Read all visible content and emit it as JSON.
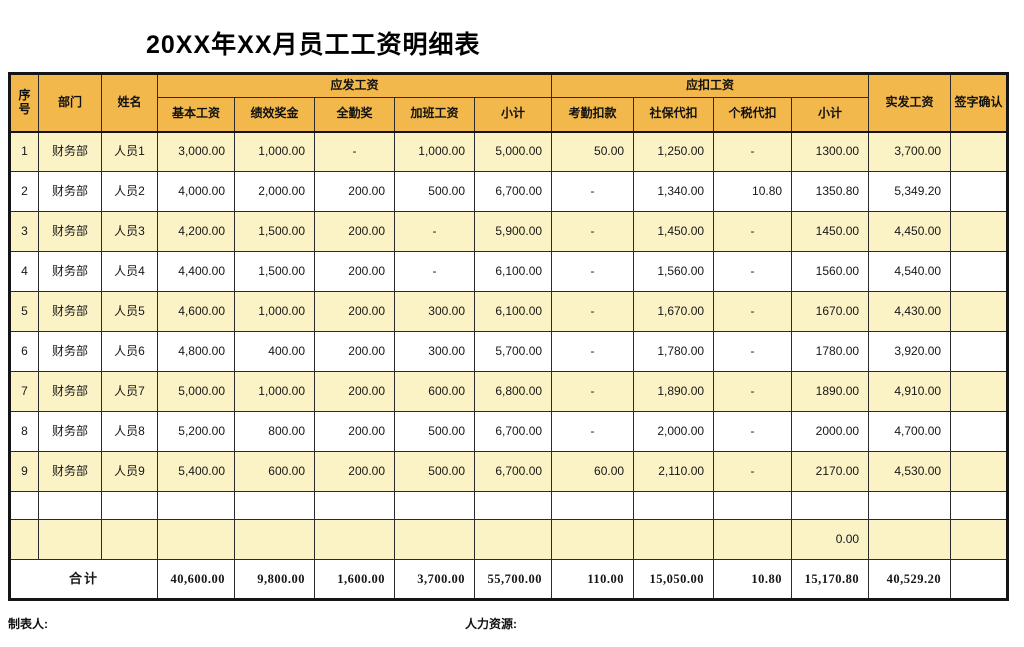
{
  "title": "20XX年XX月员工工资明细表",
  "colors": {
    "header_bg": "#F2B84B",
    "stripe_bg": "#FBF3C6",
    "border": "#141414"
  },
  "table": {
    "header": {
      "no": "序号",
      "dept": "部门",
      "name": "姓名",
      "gross_group": "应发工资",
      "deduct_group": "应扣工资",
      "gross_sub": [
        "基本工资",
        "绩效奖金",
        "全勤奖",
        "加班工资",
        "小计"
      ],
      "deduct_sub": [
        "考勤扣款",
        "社保代扣",
        "个税代扣",
        "小计"
      ],
      "net": "实发工资",
      "sign": "签字确认"
    },
    "rows": [
      [
        "1",
        "财务部",
        "人员1",
        "3,000.00",
        "1,000.00",
        "-",
        "1,000.00",
        "5,000.00",
        "50.00",
        "1,250.00",
        "-",
        "1300.00",
        "3,700.00",
        ""
      ],
      [
        "2",
        "财务部",
        "人员2",
        "4,000.00",
        "2,000.00",
        "200.00",
        "500.00",
        "6,700.00",
        "-",
        "1,340.00",
        "10.80",
        "1350.80",
        "5,349.20",
        ""
      ],
      [
        "3",
        "财务部",
        "人员3",
        "4,200.00",
        "1,500.00",
        "200.00",
        "-",
        "5,900.00",
        "-",
        "1,450.00",
        "-",
        "1450.00",
        "4,450.00",
        ""
      ],
      [
        "4",
        "财务部",
        "人员4",
        "4,400.00",
        "1,500.00",
        "200.00",
        "-",
        "6,100.00",
        "-",
        "1,560.00",
        "-",
        "1560.00",
        "4,540.00",
        ""
      ],
      [
        "5",
        "财务部",
        "人员5",
        "4,600.00",
        "1,000.00",
        "200.00",
        "300.00",
        "6,100.00",
        "-",
        "1,670.00",
        "-",
        "1670.00",
        "4,430.00",
        ""
      ],
      [
        "6",
        "财务部",
        "人员6",
        "4,800.00",
        "400.00",
        "200.00",
        "300.00",
        "5,700.00",
        "-",
        "1,780.00",
        "-",
        "1780.00",
        "3,920.00",
        ""
      ],
      [
        "7",
        "财务部",
        "人员7",
        "5,000.00",
        "1,000.00",
        "200.00",
        "600.00",
        "6,800.00",
        "-",
        "1,890.00",
        "-",
        "1890.00",
        "4,910.00",
        ""
      ],
      [
        "8",
        "财务部",
        "人员8",
        "5,200.00",
        "800.00",
        "200.00",
        "500.00",
        "6,700.00",
        "-",
        "2,000.00",
        "-",
        "2000.00",
        "4,700.00",
        ""
      ],
      [
        "9",
        "财务部",
        "人员9",
        "5,400.00",
        "600.00",
        "200.00",
        "500.00",
        "6,700.00",
        "60.00",
        "2,110.00",
        "-",
        "2170.00",
        "4,530.00",
        ""
      ],
      [
        "",
        "",
        "",
        "",
        "",
        "",
        "",
        "",
        "",
        "",
        "",
        "",
        "",
        ""
      ],
      [
        "",
        "",
        "",
        "",
        "",
        "",
        "",
        "",
        "",
        "",
        "",
        "0.00",
        "",
        ""
      ]
    ],
    "total": {
      "label": "合计",
      "cells": [
        "40,600.00",
        "9,800.00",
        "1,600.00",
        "3,700.00",
        "55,700.00",
        "110.00",
        "15,050.00",
        "10.80",
        "15,170.80",
        "40,529.20",
        ""
      ]
    }
  },
  "footer": {
    "preparer_label": "制表人:",
    "hr_label": "人力资源:"
  }
}
